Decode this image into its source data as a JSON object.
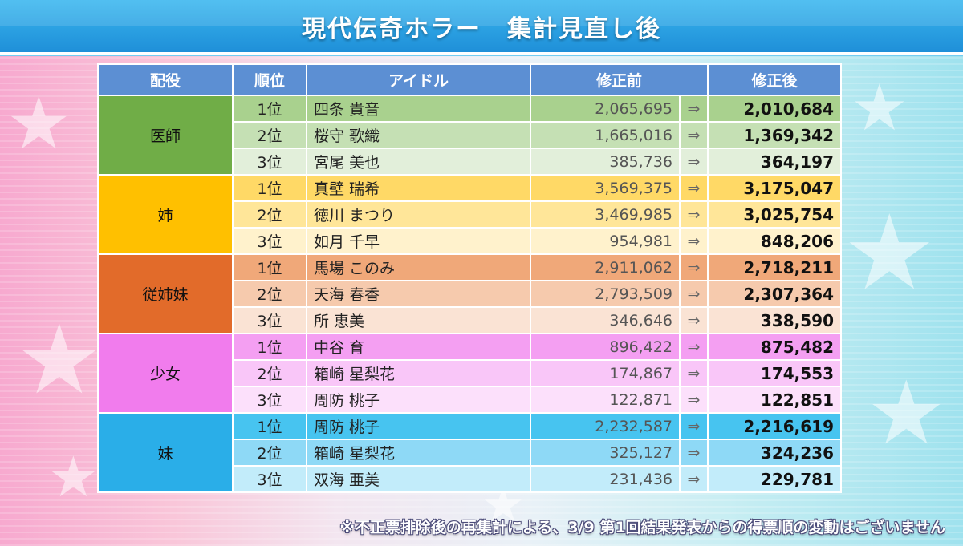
{
  "title": "現代伝奇ホラー　集計見直し後",
  "table": {
    "headers": {
      "role": "配役",
      "rank": "順位",
      "idol": "アイドル",
      "before": "修正前",
      "after": "修正後"
    },
    "arrow_symbol": "⇒",
    "groups": [
      {
        "role": "医師",
        "role_color": "#70ad47",
        "row_colors": [
          "#a9d18e",
          "#c5e0b4",
          "#e2efda"
        ],
        "rows": [
          {
            "rank": "1位",
            "idol": "四条 貴音",
            "before": "2,065,695",
            "after": "2,010,684"
          },
          {
            "rank": "2位",
            "idol": "桜守 歌織",
            "before": "1,665,016",
            "after": "1,369,342"
          },
          {
            "rank": "3位",
            "idol": "宮尾 美也",
            "before": "385,736",
            "after": "364,197"
          }
        ]
      },
      {
        "role": "姉",
        "role_color": "#ffc000",
        "row_colors": [
          "#ffd966",
          "#ffe699",
          "#fff2cc"
        ],
        "rows": [
          {
            "rank": "1位",
            "idol": "真壁 瑞希",
            "before": "3,569,375",
            "after": "3,175,047"
          },
          {
            "rank": "2位",
            "idol": "徳川 まつり",
            "before": "3,469,985",
            "after": "3,025,754"
          },
          {
            "rank": "3位",
            "idol": "如月 千早",
            "before": "954,981",
            "after": "848,206"
          }
        ]
      },
      {
        "role": "従姉妹",
        "role_color": "#e26b2a",
        "row_colors": [
          "#f0a879",
          "#f6caad",
          "#fae3d4"
        ],
        "rows": [
          {
            "rank": "1位",
            "idol": "馬場 このみ",
            "before": "2,911,062",
            "after": "2,718,211"
          },
          {
            "rank": "2位",
            "idol": "天海 春香",
            "before": "2,793,509",
            "after": "2,307,364"
          },
          {
            "rank": "3位",
            "idol": "所 恵美",
            "before": "346,646",
            "after": "338,590"
          }
        ]
      },
      {
        "role": "少女",
        "role_color": "#f17ced",
        "row_colors": [
          "#f49ff2",
          "#f9c6f8",
          "#fce0fb"
        ],
        "rows": [
          {
            "rank": "1位",
            "idol": "中谷 育",
            "before": "896,422",
            "after": "875,482"
          },
          {
            "rank": "2位",
            "idol": "箱崎 星梨花",
            "before": "174,867",
            "after": "174,553"
          },
          {
            "rank": "3位",
            "idol": "周防 桃子",
            "before": "122,871",
            "after": "122,851"
          }
        ]
      },
      {
        "role": "妹",
        "role_color": "#2aaee8",
        "row_colors": [
          "#47c4f0",
          "#8ed9f6",
          "#c2ecfa"
        ],
        "rows": [
          {
            "rank": "1位",
            "idol": "周防 桃子",
            "before": "2,232,587",
            "after": "2,216,619"
          },
          {
            "rank": "2位",
            "idol": "箱崎 星梨花",
            "before": "325,127",
            "after": "324,236"
          },
          {
            "rank": "3位",
            "idol": "双海 亜美",
            "before": "231,436",
            "after": "229,781"
          }
        ]
      }
    ]
  },
  "footnote": "※不正票排除後の再集計による、3/9 第1回結果発表からの得票順の変動はございません"
}
